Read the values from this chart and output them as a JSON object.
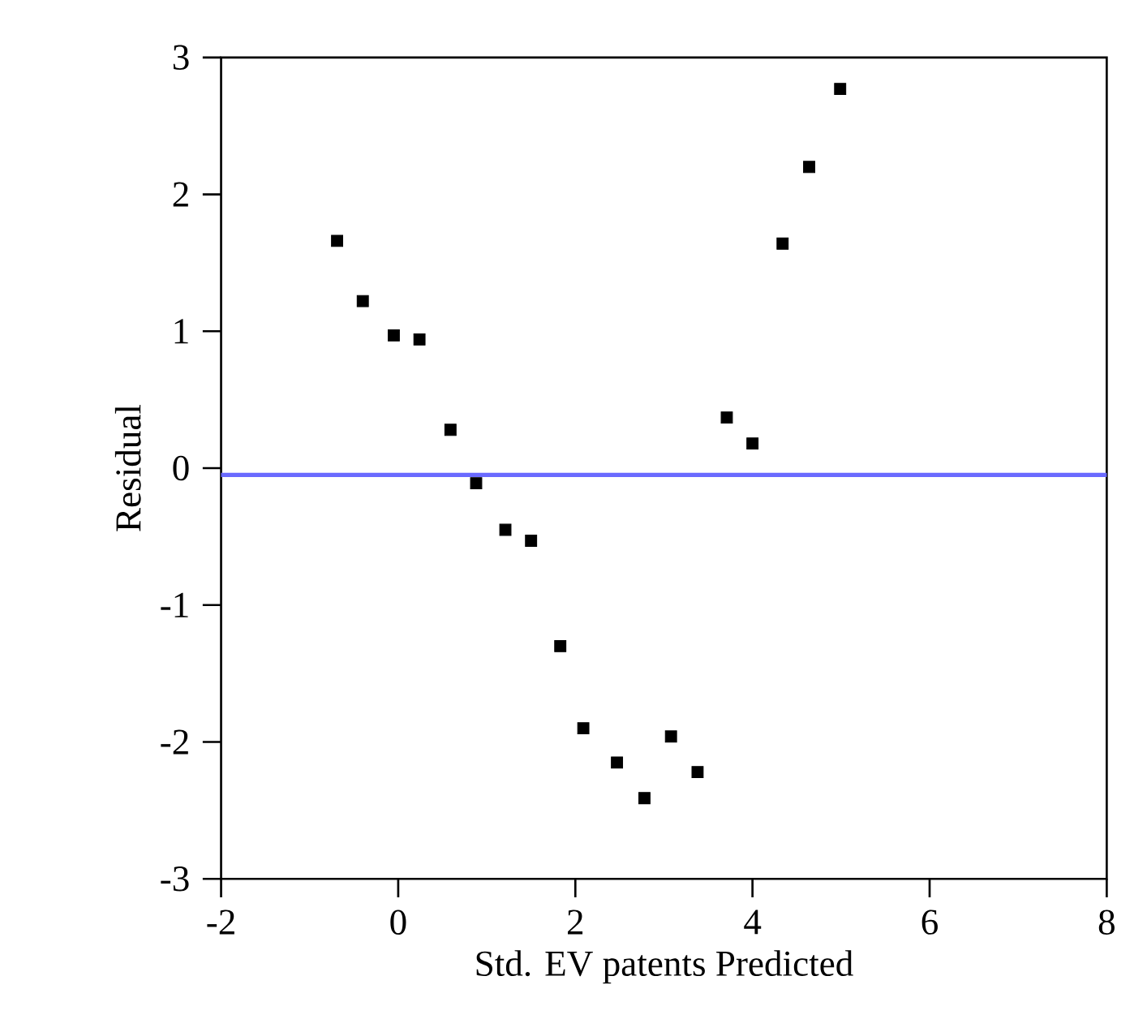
{
  "chart_data": {
    "type": "scatter",
    "xlabel": "Std. EV patents Predicted",
    "ylabel": "Residual",
    "x": [
      -0.69,
      -0.4,
      -0.05,
      0.24,
      0.59,
      0.88,
      1.21,
      1.5,
      1.83,
      2.09,
      2.47,
      2.78,
      3.08,
      3.38,
      3.71,
      4.0,
      4.34,
      4.64,
      4.99
    ],
    "values": [
      1.66,
      1.22,
      0.97,
      0.94,
      0.28,
      -0.11,
      -0.45,
      -0.53,
      -1.3,
      -1.9,
      -2.15,
      -2.41,
      -1.96,
      -2.22,
      0.37,
      0.18,
      1.64,
      2.2,
      2.77
    ],
    "color": "#000000",
    "marker": "square",
    "grid": false,
    "xlim": [
      -2,
      8
    ],
    "ylim": [
      -3,
      3
    ],
    "xticks": [
      -2,
      0,
      2,
      4,
      6,
      8
    ],
    "yticks": [
      -3,
      -2,
      -1,
      0,
      1,
      2,
      3
    ],
    "ref_lines": [
      {
        "axis": "y",
        "value": -0.05,
        "color": "#6a6aff"
      }
    ]
  }
}
